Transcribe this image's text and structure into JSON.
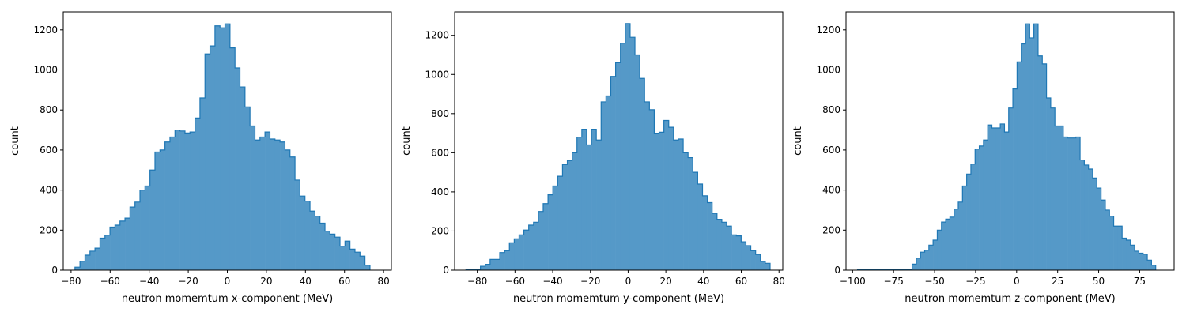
{
  "style": {
    "bar_fill": "#5599c8",
    "bar_edge": "#1f77b4"
  },
  "chart_data": [
    {
      "type": "histogram",
      "xlabel": "neutron momemtum x-component (MeV)",
      "ylabel": "count",
      "xlim": [
        -84,
        84
      ],
      "ylim": [
        0,
        1290
      ],
      "xticks": [
        -80,
        -60,
        -40,
        -20,
        0,
        20,
        40,
        60,
        80
      ],
      "yticks": [
        0,
        200,
        400,
        600,
        800,
        1000,
        1200
      ],
      "bin_start": -78,
      "bin_width": 2.56,
      "values": [
        15,
        45,
        75,
        95,
        110,
        160,
        175,
        215,
        225,
        245,
        260,
        315,
        340,
        400,
        420,
        500,
        590,
        600,
        640,
        665,
        700,
        695,
        685,
        690,
        760,
        860,
        1080,
        1120,
        1220,
        1210,
        1230,
        1110,
        1010,
        915,
        815,
        720,
        650,
        665,
        690,
        655,
        650,
        640,
        600,
        565,
        450,
        370,
        345,
        295,
        270,
        235,
        195,
        180,
        165,
        120,
        145,
        105,
        90,
        70,
        25
      ]
    },
    {
      "type": "histogram",
      "xlabel": "neutron momemtum y-component (MeV)",
      "ylabel": "count",
      "xlim": [
        -92,
        82
      ],
      "ylim": [
        0,
        1320
      ],
      "xticks": [
        -80,
        -60,
        -40,
        -20,
        0,
        20,
        40,
        60,
        80
      ],
      "yticks": [
        0,
        200,
        400,
        600,
        800,
        1000,
        1200
      ],
      "bin_start": -86,
      "bin_width": 2.56,
      "values": [
        2,
        2,
        3,
        20,
        30,
        55,
        55,
        90,
        100,
        140,
        160,
        180,
        205,
        230,
        245,
        300,
        340,
        385,
        430,
        480,
        540,
        560,
        600,
        680,
        720,
        640,
        720,
        665,
        860,
        890,
        990,
        1060,
        1160,
        1260,
        1190,
        1100,
        980,
        860,
        820,
        700,
        705,
        765,
        730,
        665,
        670,
        600,
        575,
        500,
        440,
        380,
        345,
        290,
        260,
        245,
        225,
        180,
        175,
        145,
        125,
        100,
        80,
        45,
        35
      ]
    },
    {
      "type": "histogram",
      "xlabel": "neutron momemtum z-component (MeV)",
      "ylabel": "count",
      "xlim": [
        -104,
        96
      ],
      "ylim": [
        0,
        1290
      ],
      "xticks": [
        -100,
        -75,
        -50,
        -25,
        0,
        25,
        50,
        75
      ],
      "yticks": [
        0,
        200,
        400,
        600,
        800,
        1000,
        1200
      ],
      "bin_start": -97,
      "bin_width": 2.56,
      "values": [
        4,
        2,
        2,
        2,
        2,
        2,
        2,
        2,
        2,
        2,
        2,
        2,
        2,
        30,
        60,
        90,
        100,
        125,
        150,
        200,
        240,
        255,
        265,
        305,
        340,
        420,
        480,
        530,
        605,
        620,
        650,
        725,
        710,
        710,
        730,
        690,
        810,
        905,
        1040,
        1130,
        1230,
        1160,
        1230,
        1070,
        1030,
        860,
        810,
        720,
        720,
        665,
        660,
        660,
        665,
        550,
        525,
        505,
        460,
        410,
        350,
        300,
        270,
        220,
        220,
        160,
        150,
        125,
        95,
        85,
        80,
        50,
        25
      ]
    }
  ]
}
